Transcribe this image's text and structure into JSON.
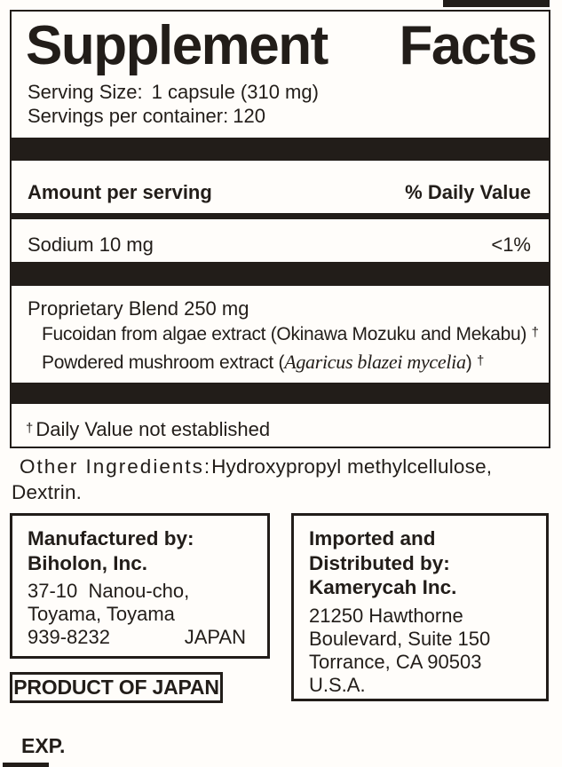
{
  "colors": {
    "ink": "#221d19",
    "background": "#fffdfa"
  },
  "panel": {
    "title_words": [
      "Supplement",
      "Facts"
    ],
    "serving_size_label": "Serving Size:",
    "serving_size_value": "1 capsule (310 mg)",
    "servings_label": "Servings per container:",
    "servings_value": "120",
    "amount_header": "Amount per serving",
    "dv_header": "% Daily Value",
    "sodium": {
      "name": "Sodium 10 mg",
      "daily_value": "<1%"
    },
    "blend": {
      "name": "Proprietary Blend 250 mg",
      "item1_text": "Fucoidan from algae extract (Okinawa Mozuku and Mekabu)",
      "item1_mark": "†",
      "item2_prefix": "Powdered mushroom extract (",
      "item2_species": "Agaricus blazei mycelia",
      "item2_suffix": ")",
      "item2_mark": "†"
    },
    "footnote_mark": "†",
    "footnote_text": "Daily Value not established"
  },
  "other_ingredients": {
    "label": "Other Ingredients:",
    "value": "Hydroxypropyl methylcellulose, Dextrin."
  },
  "manufacturer": {
    "title_line1": "Manufactured by:",
    "title_line2": "Biholon, Inc.",
    "address_line1": "37-10  Nanou-cho,",
    "address_line2": "Toyama, Toyama",
    "postal_code": "939-8232",
    "country": "JAPAN"
  },
  "importer": {
    "title_line1": "Imported and",
    "title_line2": "Distributed by:",
    "title_line3": "Kamerycah Inc.",
    "address_line1": "21250 Hawthorne",
    "address_line2": "Boulevard, Suite 150",
    "address_line3": "Torrance, CA 90503",
    "address_line4": "U.S.A."
  },
  "origin_badge": "PRODUCT OF JAPAN",
  "expiration_label": "EXP."
}
